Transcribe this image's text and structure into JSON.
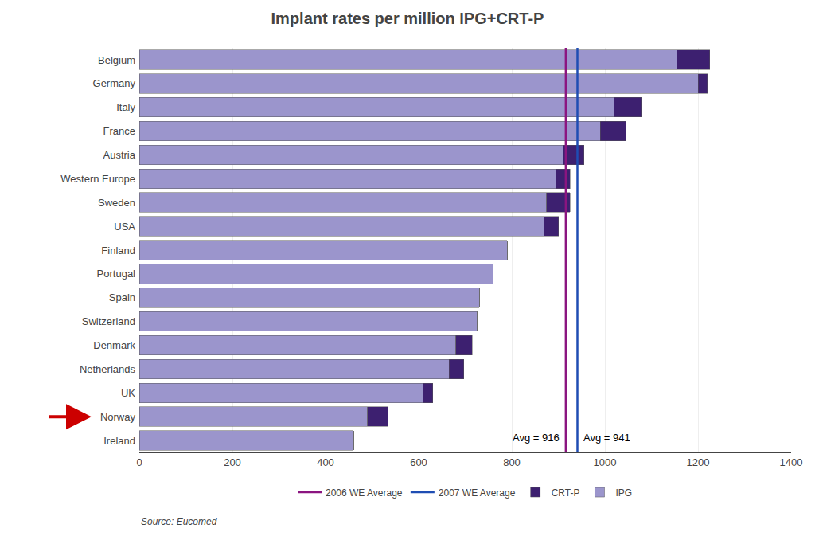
{
  "chart_data": {
    "type": "bar",
    "orientation": "horizontal",
    "stacked": true,
    "title": "Implant rates per million IPG+CRT-P",
    "categories": [
      "Belgium",
      "Germany",
      "Italy",
      "France",
      "Austria",
      "Western Europe",
      "Sweden",
      "USA",
      "Finland",
      "Portugal",
      "Spain",
      "Switzerland",
      "Denmark",
      "Netherlands",
      "UK",
      "Norway",
      "Ireland"
    ],
    "series": [
      {
        "name": "IPG",
        "color": "#9b95cc",
        "values": [
          1155,
          1200,
          1020,
          990,
          910,
          895,
          875,
          870,
          790,
          760,
          730,
          725,
          680,
          665,
          610,
          490,
          460
        ]
      },
      {
        "name": "CRT-P",
        "color": "#3d2070",
        "values": [
          70,
          20,
          60,
          55,
          45,
          30,
          50,
          30,
          0,
          0,
          0,
          0,
          35,
          32,
          20,
          45,
          0
        ]
      }
    ],
    "reference_lines": [
      {
        "name": "2007 WE Average",
        "value": 941,
        "color": "#1f4db3",
        "label": "Avg = 941"
      },
      {
        "name": "2006 WE Average",
        "value": 916,
        "color": "#8b1580",
        "label": "Avg = 916"
      }
    ],
    "arrow": {
      "category": "Norway",
      "color": "#cc0000"
    },
    "source": "Source: Eucomed",
    "xlim": [
      0,
      1400
    ],
    "xticks": [
      0,
      200,
      400,
      600,
      800,
      1000,
      1200,
      1400
    ],
    "grid": true,
    "legend": "bottom"
  }
}
